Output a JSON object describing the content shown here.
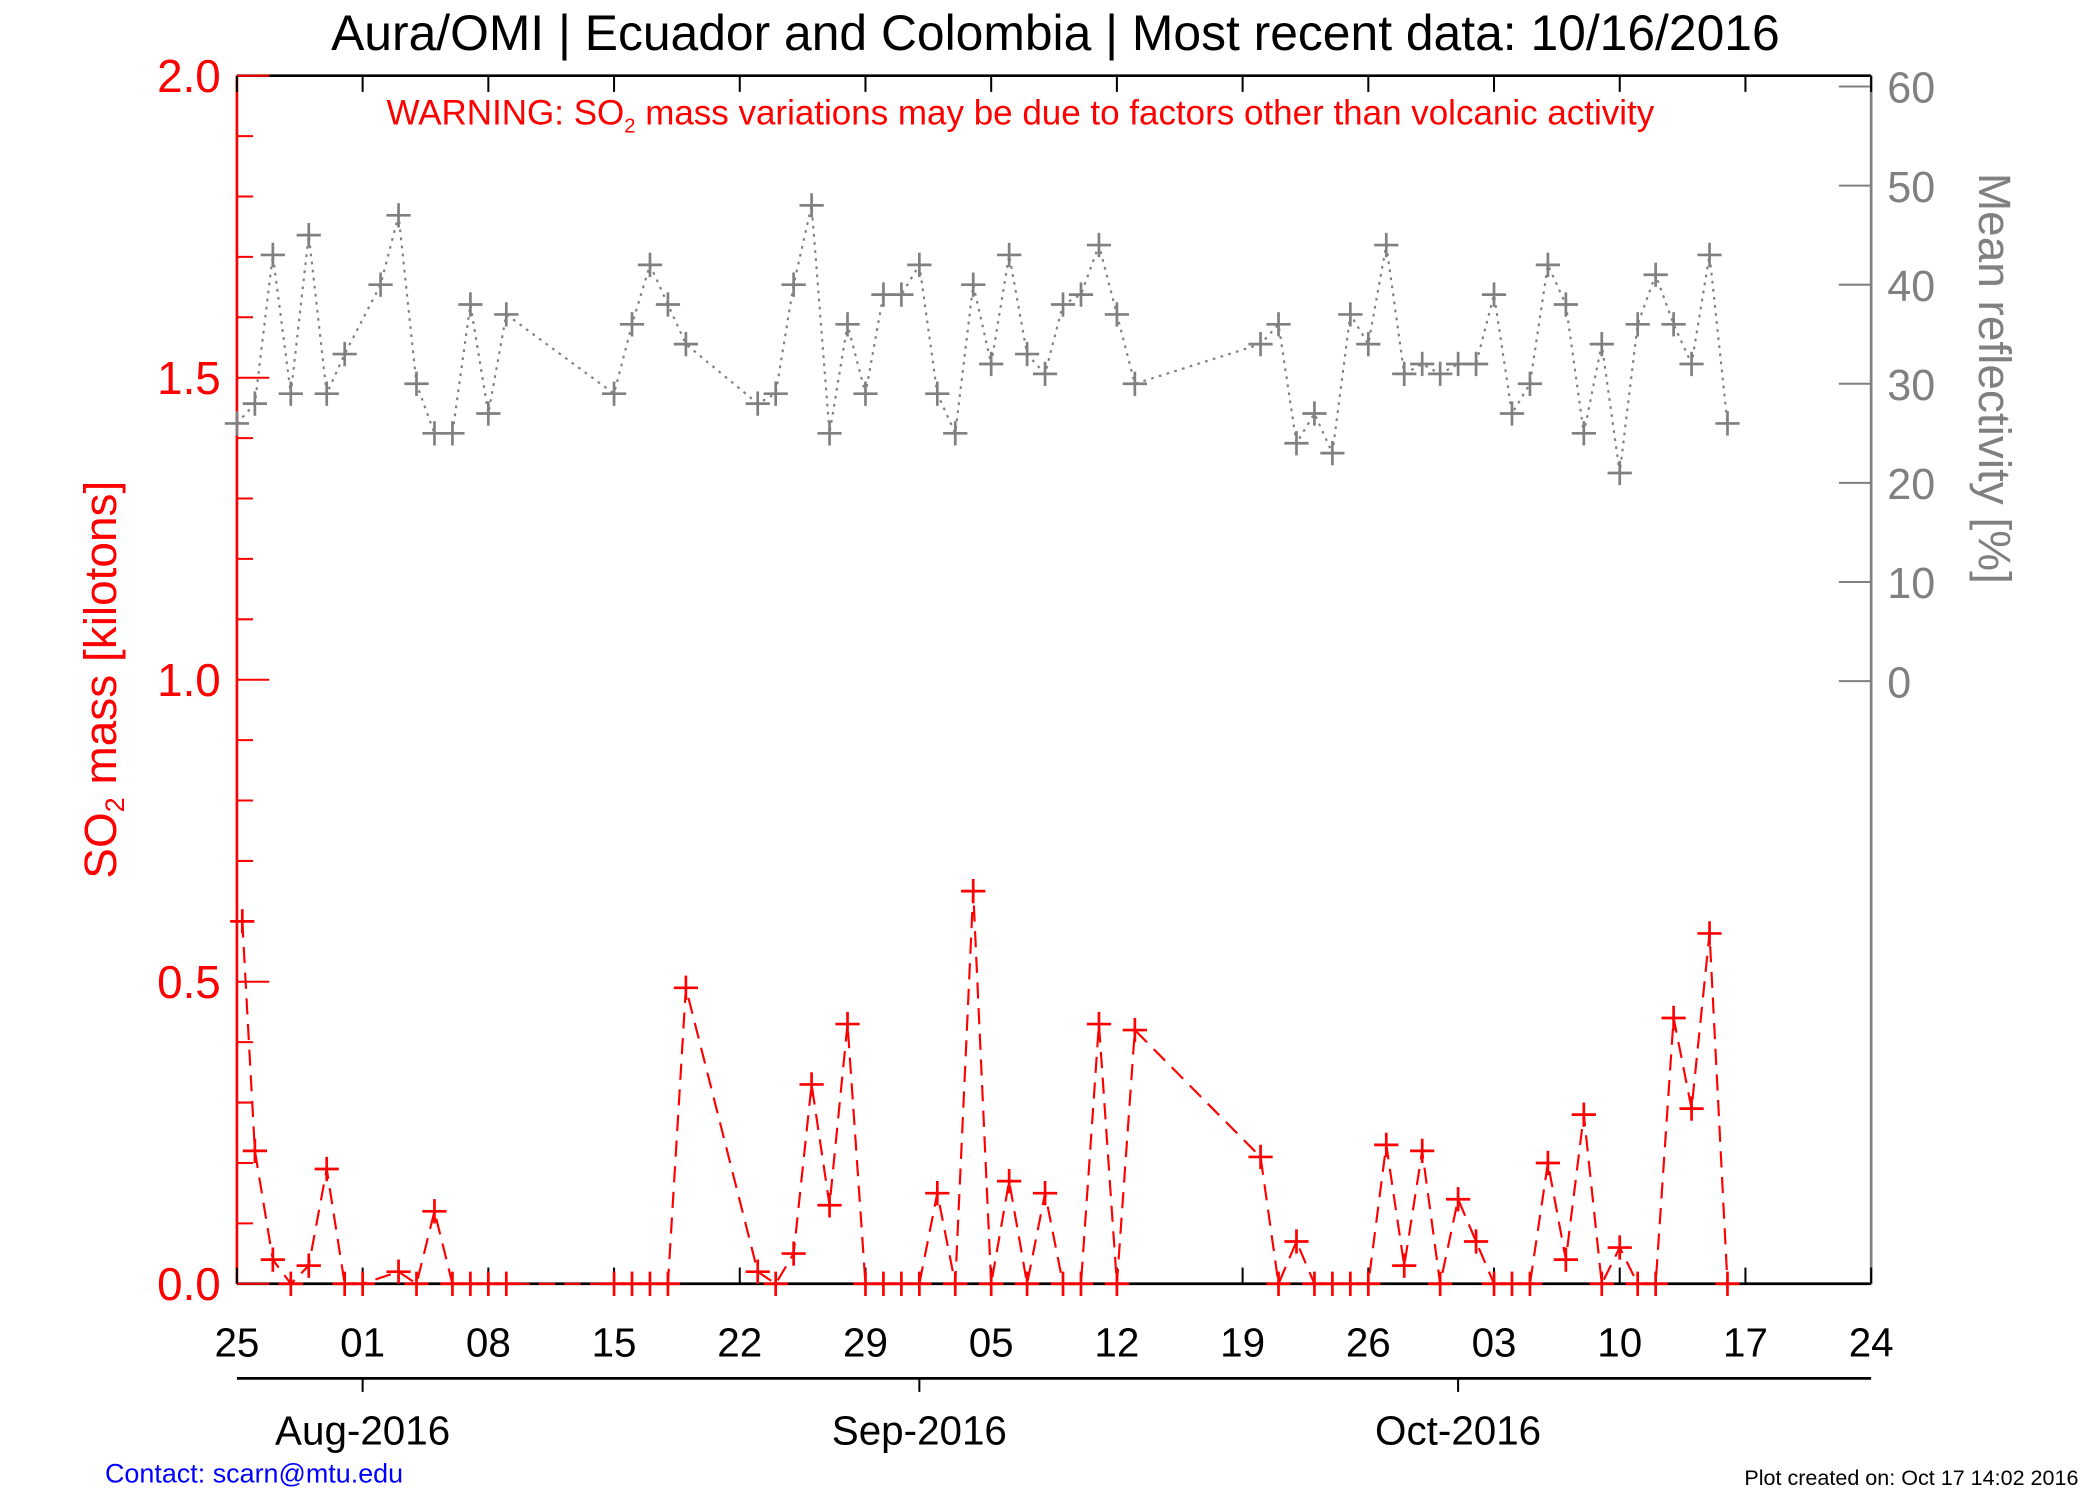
{
  "chart_data": {
    "type": "line",
    "title": "Aura/OMI | Ecuador and Colombia | Most recent data: 10/16/2016",
    "warning": {
      "prefix": "WARNING: SO",
      "sub": "2",
      "suffix": " mass variations may be due to factors other than volcanic activity"
    },
    "ylabel_left": {
      "prefix": "SO",
      "sub": "2",
      "suffix": " mass [kilotons]"
    },
    "ylabel_right": "Mean reflectivity [%]",
    "ylim_left": [
      0,
      2.0
    ],
    "ylim_right_ticks": [
      0,
      60
    ],
    "x_start": "2016-07-25",
    "x_days_range": [
      0,
      91
    ],
    "x_tick_labels": [
      "25",
      "01",
      "08",
      "15",
      "22",
      "29",
      "05",
      "12",
      "19",
      "26",
      "03",
      "10",
      "17",
      "24"
    ],
    "left_tick_labels": [
      "0.0",
      "0.5",
      "1.0",
      "1.5",
      "2.0"
    ],
    "right_tick_labels": [
      "0",
      "10",
      "20",
      "30",
      "40",
      "50",
      "60"
    ],
    "month_labels": [
      {
        "label": "Aug-2016",
        "day": 7
      },
      {
        "label": "Sep-2016",
        "day": 38
      },
      {
        "label": "Oct-2016",
        "day": 68
      }
    ],
    "colors": {
      "so2": "#ff0000",
      "reflectivity": "#808080",
      "axis": "#000000",
      "contact": "#0000ff"
    },
    "series": [
      {
        "name": "SO2 mass (kt)",
        "axis": "left",
        "style": "dashed",
        "x": [
          0.3,
          1,
          2,
          3,
          4,
          5,
          6,
          7,
          9,
          10,
          11,
          12,
          13,
          14,
          15,
          21,
          22,
          23,
          24,
          25,
          29,
          30,
          31,
          32,
          33,
          34,
          35,
          36,
          37,
          38,
          39,
          40,
          41,
          42,
          43,
          44,
          45,
          46,
          47,
          48,
          49,
          50,
          57,
          58,
          59,
          60,
          61,
          62,
          63,
          64,
          65,
          66,
          67,
          68,
          69,
          70,
          71,
          72,
          73,
          74,
          75,
          76,
          77,
          78,
          79,
          80,
          81,
          82,
          83
        ],
        "values": [
          0.6,
          0.22,
          0.04,
          0,
          0.03,
          0.19,
          0,
          0,
          0.02,
          0,
          0.12,
          0,
          0,
          0,
          0,
          0,
          0,
          0,
          0,
          0.49,
          0.02,
          0,
          0.05,
          0.33,
          0.13,
          0.43,
          0,
          0,
          0,
          0,
          0.15,
          0,
          0.65,
          0,
          0.17,
          0,
          0.15,
          0,
          0,
          0.43,
          0,
          0.42,
          0.21,
          0,
          0.07,
          0,
          0,
          0,
          0,
          0.23,
          0.03,
          0.22,
          0,
          0.14,
          0.07,
          0,
          0,
          0,
          0.2,
          0.04,
          0.28,
          0,
          0.06,
          0,
          0,
          0.44,
          0.29,
          0.58,
          0
        ]
      },
      {
        "name": "Mean reflectivity (%)",
        "axis": "right",
        "style": "dotted",
        "x": [
          0,
          1,
          2,
          3,
          4,
          5,
          6,
          8,
          9,
          10,
          11,
          12,
          13,
          14,
          15,
          21,
          22,
          23,
          24,
          25,
          29,
          30,
          31,
          32,
          33,
          34,
          35,
          36,
          37,
          38,
          39,
          40,
          41,
          42,
          43,
          44,
          45,
          46,
          47,
          48,
          49,
          50,
          57,
          58,
          59,
          60,
          61,
          62,
          63,
          64,
          65,
          66,
          67,
          68,
          69,
          70,
          71,
          72,
          73,
          74,
          75,
          76,
          77,
          78,
          79,
          80,
          81,
          82,
          83
        ],
        "values": [
          26,
          28,
          43,
          29,
          45,
          29,
          33,
          40,
          47,
          30,
          25,
          25,
          38,
          27,
          37,
          29,
          36,
          42,
          38,
          34,
          28,
          29,
          40,
          48,
          25,
          36,
          29,
          39,
          39,
          42,
          29,
          25,
          40,
          32,
          43,
          33,
          31,
          38,
          39,
          44,
          37,
          30,
          34,
          36,
          24,
          27,
          23,
          37,
          34,
          44,
          31,
          32,
          31,
          32,
          32,
          39,
          27,
          30,
          42,
          38,
          25,
          34,
          21,
          36,
          41,
          36,
          32,
          43,
          26
        ]
      }
    ]
  },
  "footer": {
    "contact": "Contact: scarn@mtu.edu",
    "created": "Plot created on: Oct 17 14:02 2016"
  }
}
